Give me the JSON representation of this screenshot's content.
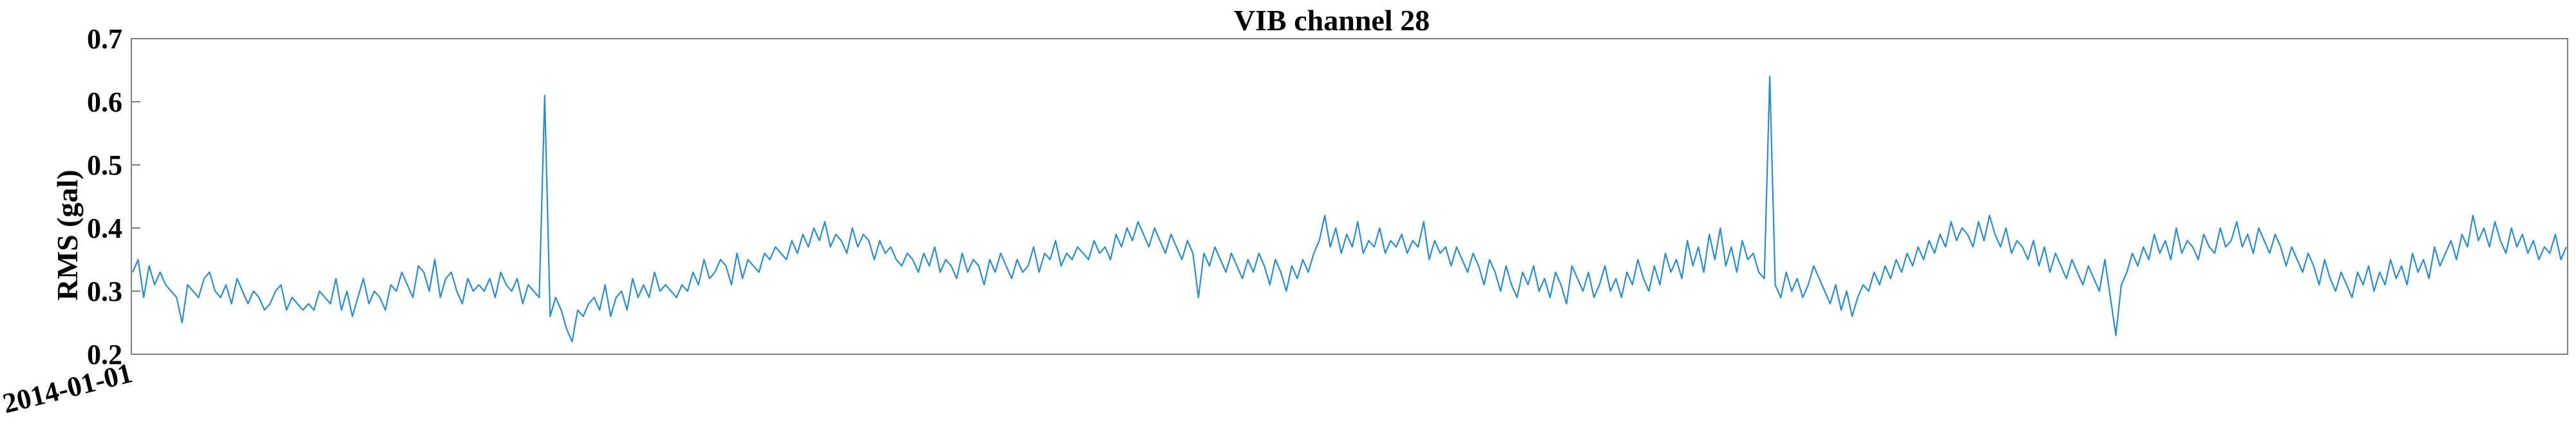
{
  "chart_data": {
    "type": "line",
    "title": "VIB channel 28",
    "ylabel": "RMS (gal)",
    "xlabel": "",
    "ylim": [
      0.2,
      0.7
    ],
    "yticks": [
      "0.2",
      "0.3",
      "0.4",
      "0.5",
      "0.6",
      "0.7"
    ],
    "xticks": [
      "2014-01-01"
    ],
    "grid": false,
    "legend": "none",
    "colors": {
      "line": "#2b8cc8",
      "axes": "#7f7f7f",
      "text": "#000000"
    },
    "series": [
      {
        "values": [
          0.33,
          0.35,
          0.29,
          0.34,
          0.31,
          0.33,
          0.31,
          0.3,
          0.29,
          0.25,
          0.31,
          0.3,
          0.29,
          0.32,
          0.33,
          0.3,
          0.29,
          0.31,
          0.28,
          0.32,
          0.3,
          0.28,
          0.3,
          0.29,
          0.27,
          0.28,
          0.3,
          0.31,
          0.27,
          0.29,
          0.28,
          0.27,
          0.28,
          0.27,
          0.3,
          0.29,
          0.28,
          0.32,
          0.27,
          0.3,
          0.26,
          0.29,
          0.32,
          0.28,
          0.3,
          0.29,
          0.27,
          0.31,
          0.3,
          0.33,
          0.31,
          0.29,
          0.34,
          0.33,
          0.3,
          0.35,
          0.29,
          0.32,
          0.33,
          0.3,
          0.28,
          0.32,
          0.3,
          0.31,
          0.3,
          0.32,
          0.29,
          0.33,
          0.31,
          0.3,
          0.32,
          0.28,
          0.31,
          0.3,
          0.29,
          0.61,
          0.26,
          0.29,
          0.27,
          0.24,
          0.22,
          0.27,
          0.26,
          0.28,
          0.29,
          0.27,
          0.31,
          0.26,
          0.29,
          0.3,
          0.27,
          0.32,
          0.29,
          0.31,
          0.29,
          0.33,
          0.3,
          0.31,
          0.3,
          0.29,
          0.31,
          0.3,
          0.33,
          0.31,
          0.35,
          0.32,
          0.33,
          0.35,
          0.34,
          0.31,
          0.36,
          0.32,
          0.35,
          0.34,
          0.33,
          0.36,
          0.35,
          0.37,
          0.36,
          0.35,
          0.38,
          0.36,
          0.39,
          0.37,
          0.4,
          0.38,
          0.41,
          0.37,
          0.39,
          0.38,
          0.36,
          0.4,
          0.37,
          0.39,
          0.38,
          0.35,
          0.38,
          0.36,
          0.37,
          0.35,
          0.34,
          0.36,
          0.35,
          0.33,
          0.36,
          0.34,
          0.37,
          0.33,
          0.35,
          0.34,
          0.32,
          0.36,
          0.33,
          0.35,
          0.34,
          0.31,
          0.35,
          0.33,
          0.36,
          0.34,
          0.32,
          0.35,
          0.33,
          0.34,
          0.37,
          0.33,
          0.36,
          0.35,
          0.38,
          0.34,
          0.36,
          0.35,
          0.37,
          0.36,
          0.35,
          0.38,
          0.36,
          0.37,
          0.35,
          0.39,
          0.37,
          0.4,
          0.38,
          0.41,
          0.39,
          0.37,
          0.4,
          0.38,
          0.36,
          0.39,
          0.37,
          0.35,
          0.38,
          0.36,
          0.29,
          0.36,
          0.34,
          0.37,
          0.35,
          0.33,
          0.36,
          0.34,
          0.32,
          0.35,
          0.33,
          0.36,
          0.34,
          0.31,
          0.35,
          0.33,
          0.3,
          0.34,
          0.32,
          0.35,
          0.33,
          0.36,
          0.38,
          0.42,
          0.37,
          0.4,
          0.36,
          0.39,
          0.37,
          0.41,
          0.36,
          0.38,
          0.37,
          0.4,
          0.36,
          0.38,
          0.37,
          0.39,
          0.36,
          0.38,
          0.37,
          0.41,
          0.35,
          0.38,
          0.36,
          0.37,
          0.34,
          0.37,
          0.35,
          0.33,
          0.36,
          0.34,
          0.31,
          0.35,
          0.33,
          0.3,
          0.34,
          0.31,
          0.29,
          0.33,
          0.31,
          0.34,
          0.3,
          0.32,
          0.29,
          0.33,
          0.31,
          0.28,
          0.34,
          0.32,
          0.3,
          0.33,
          0.29,
          0.31,
          0.34,
          0.3,
          0.32,
          0.29,
          0.33,
          0.31,
          0.35,
          0.32,
          0.3,
          0.34,
          0.31,
          0.36,
          0.33,
          0.35,
          0.32,
          0.38,
          0.34,
          0.37,
          0.33,
          0.39,
          0.35,
          0.4,
          0.34,
          0.37,
          0.33,
          0.38,
          0.35,
          0.36,
          0.33,
          0.32,
          0.64,
          0.31,
          0.29,
          0.33,
          0.3,
          0.32,
          0.29,
          0.31,
          0.34,
          0.32,
          0.3,
          0.28,
          0.31,
          0.27,
          0.3,
          0.26,
          0.29,
          0.31,
          0.3,
          0.33,
          0.31,
          0.34,
          0.32,
          0.35,
          0.33,
          0.36,
          0.34,
          0.37,
          0.35,
          0.38,
          0.36,
          0.39,
          0.37,
          0.41,
          0.38,
          0.4,
          0.39,
          0.37,
          0.41,
          0.38,
          0.42,
          0.39,
          0.37,
          0.4,
          0.36,
          0.38,
          0.37,
          0.35,
          0.38,
          0.34,
          0.37,
          0.33,
          0.36,
          0.34,
          0.32,
          0.35,
          0.33,
          0.31,
          0.34,
          0.32,
          0.3,
          0.35,
          0.29,
          0.23,
          0.31,
          0.33,
          0.36,
          0.34,
          0.37,
          0.35,
          0.39,
          0.36,
          0.38,
          0.35,
          0.4,
          0.36,
          0.38,
          0.37,
          0.35,
          0.39,
          0.37,
          0.36,
          0.4,
          0.37,
          0.38,
          0.41,
          0.37,
          0.39,
          0.36,
          0.4,
          0.38,
          0.36,
          0.39,
          0.37,
          0.34,
          0.37,
          0.35,
          0.33,
          0.36,
          0.34,
          0.31,
          0.35,
          0.32,
          0.3,
          0.33,
          0.31,
          0.29,
          0.33,
          0.31,
          0.34,
          0.3,
          0.33,
          0.31,
          0.35,
          0.32,
          0.34,
          0.31,
          0.36,
          0.33,
          0.35,
          0.32,
          0.37,
          0.34,
          0.36,
          0.38,
          0.35,
          0.39,
          0.37,
          0.42,
          0.38,
          0.4,
          0.37,
          0.41,
          0.38,
          0.36,
          0.4,
          0.37,
          0.39,
          0.36,
          0.38,
          0.35,
          0.37,
          0.36,
          0.39,
          0.35,
          0.37
        ]
      }
    ]
  }
}
